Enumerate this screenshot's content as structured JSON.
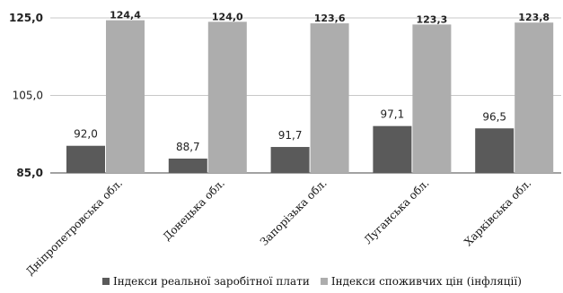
{
  "chart_data": {
    "type": "bar",
    "categories": [
      "Дніпропетровська обл.",
      "Донецька обл.",
      "Запорізька обл.",
      "Луганська обл.",
      "Харківська обл."
    ],
    "series": [
      {
        "name": "Індекси реальної заробітної плати",
        "values": [
          92.0,
          88.7,
          91.7,
          97.1,
          96.5
        ],
        "labels": [
          "92,0",
          "88,7",
          "91,7",
          "97,1",
          "96,5"
        ],
        "color": "#5a5a5a"
      },
      {
        "name": "Індекси споживчих цін (інфляції)",
        "values": [
          124.4,
          124.0,
          123.6,
          123.3,
          123.8
        ],
        "labels": [
          "124,4",
          "124,0",
          "123,6",
          "123,3",
          "123,8"
        ],
        "color": "#adadad"
      }
    ],
    "ylim": [
      85,
      125
    ],
    "yticks": [
      85,
      105,
      125
    ],
    "ytick_labels": [
      "85,0",
      "105,0",
      "125,0"
    ],
    "grid": true,
    "legend_position": "bottom"
  }
}
